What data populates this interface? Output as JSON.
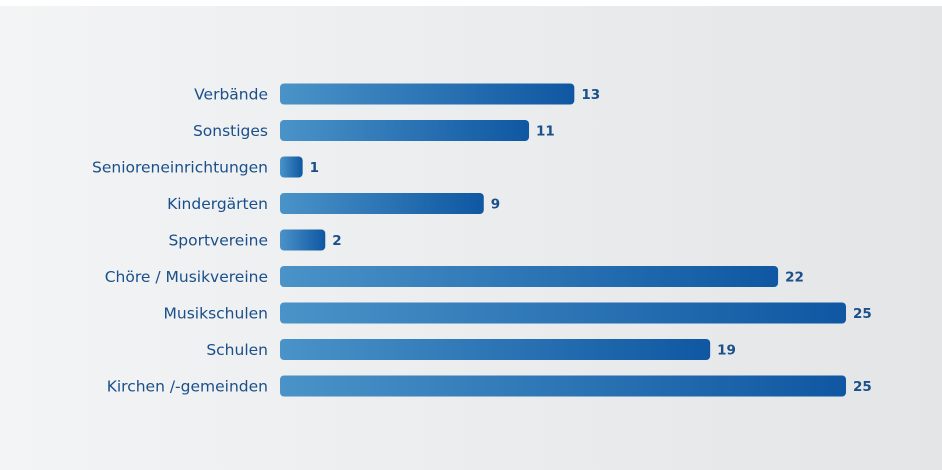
{
  "colors": {
    "bar_light": "#4a93c8",
    "bar_dark": "#0f57a2",
    "text": "#1a4f8a"
  },
  "chart_data": {
    "type": "bar",
    "orientation": "horizontal",
    "categories": [
      "Verbände",
      "Sonstiges",
      "Senioreneinrichtungen",
      "Kindergärten",
      "Sportvereine",
      "Chöre / Musikvereine",
      "Musikschulen",
      "Schulen",
      "Kirchen /-gemeinden"
    ],
    "values": [
      13,
      11,
      1,
      9,
      2,
      22,
      25,
      19,
      25
    ],
    "xlim": [
      0,
      25
    ],
    "grid": false,
    "legend": "none",
    "data_labels": true
  }
}
